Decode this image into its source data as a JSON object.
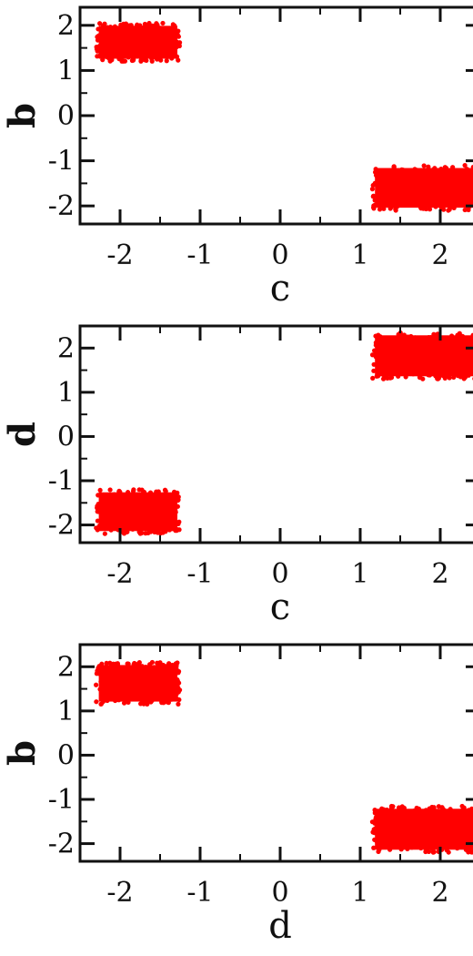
{
  "chart_data": [
    {
      "type": "scatter",
      "xlabel": "c",
      "ylabel": "b",
      "xlim": [
        -2.5,
        2.5
      ],
      "ylim": [
        -2.4,
        2.4
      ],
      "xticks": [
        "-2",
        "-1",
        "0",
        "1",
        "2"
      ],
      "yticks": [
        "-2",
        "-1",
        "0",
        "1",
        "2"
      ],
      "grid": false,
      "series": [
        {
          "color": "#ff0000",
          "clusters": [
            {
              "x_range": [
                -2.3,
                -1.25
              ],
              "y_range": [
                1.2,
                2.05
              ],
              "center": [
                -1.8,
                1.6
              ]
            },
            {
              "x_range": [
                1.15,
                2.45
              ],
              "y_range": [
                -2.1,
                -1.1
              ],
              "center": [
                1.8,
                -1.6
              ]
            }
          ]
        }
      ]
    },
    {
      "type": "scatter",
      "xlabel": "c",
      "ylabel": "d",
      "xlim": [
        -2.5,
        2.5
      ],
      "ylim": [
        -2.4,
        2.5
      ],
      "xticks": [
        "-2",
        "-1",
        "0",
        "1",
        "2"
      ],
      "yticks": [
        "-2",
        "-1",
        "0",
        "1",
        "2"
      ],
      "grid": false,
      "series": [
        {
          "color": "#ff0000",
          "clusters": [
            {
              "x_range": [
                1.15,
                2.45
              ],
              "y_range": [
                1.3,
                2.35
              ],
              "center": [
                1.8,
                1.8
              ]
            },
            {
              "x_range": [
                -2.3,
                -1.25
              ],
              "y_range": [
                -2.2,
                -1.2
              ],
              "center": [
                -1.8,
                -1.8
              ]
            }
          ]
        }
      ]
    },
    {
      "type": "scatter",
      "xlabel": "d",
      "ylabel": "b",
      "xlim": [
        -2.5,
        2.5
      ],
      "ylim": [
        -2.4,
        2.5
      ],
      "xticks": [
        "-2",
        "-1",
        "0",
        "1",
        "2"
      ],
      "yticks": [
        "-2",
        "-1",
        "0",
        "1",
        "2"
      ],
      "grid": false,
      "series": [
        {
          "color": "#ff0000",
          "clusters": [
            {
              "x_range": [
                -2.3,
                -1.25
              ],
              "y_range": [
                1.15,
                2.1
              ],
              "center": [
                -1.8,
                1.6
              ]
            },
            {
              "x_range": [
                1.15,
                2.45
              ],
              "y_range": [
                -2.2,
                -1.15
              ],
              "center": [
                1.8,
                -1.6
              ]
            }
          ]
        }
      ]
    }
  ]
}
